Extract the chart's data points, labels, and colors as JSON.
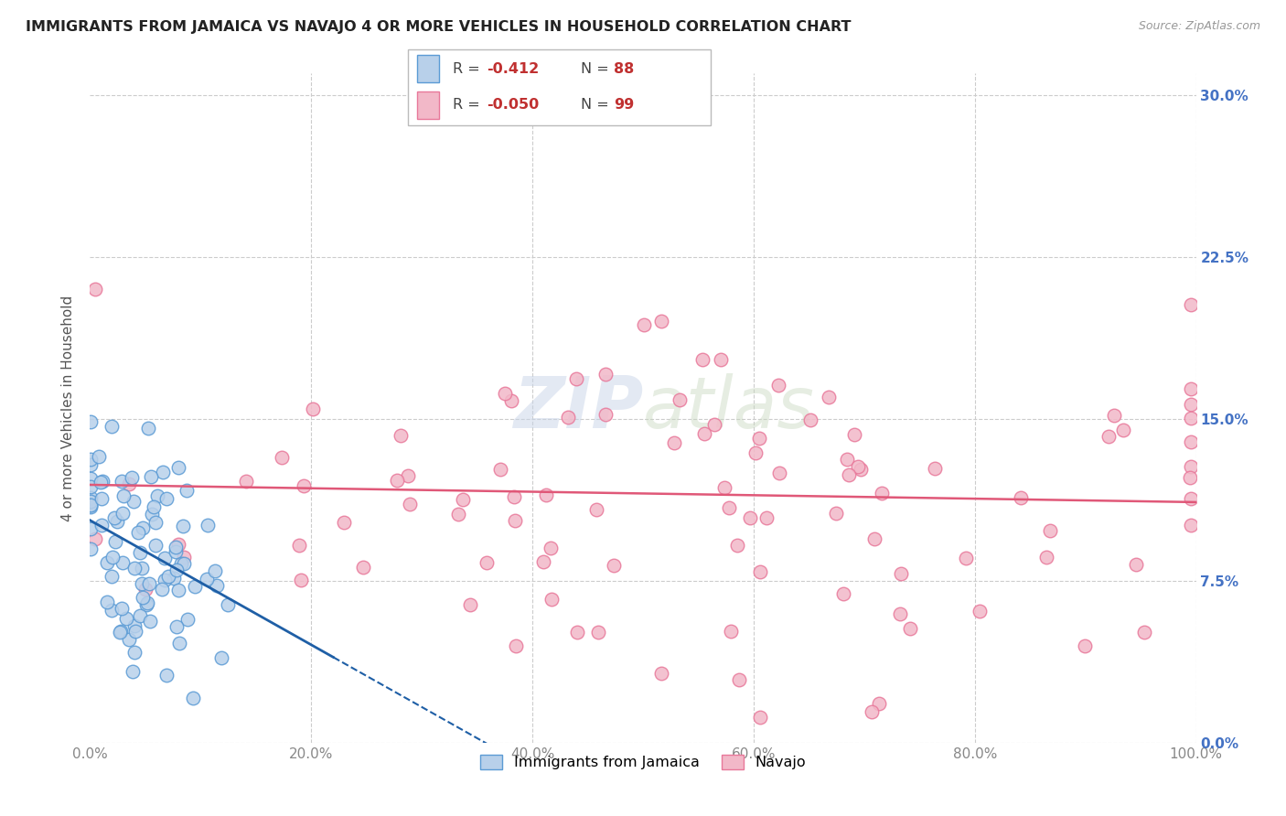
{
  "title": "IMMIGRANTS FROM JAMAICA VS NAVAJO 4 OR MORE VEHICLES IN HOUSEHOLD CORRELATION CHART",
  "source": "Source: ZipAtlas.com",
  "ylabel": "4 or more Vehicles in Household",
  "xlim": [
    0,
    100
  ],
  "ylim": [
    0,
    31
  ],
  "watermark": "ZIPatlas",
  "blue_color": "#5b9bd5",
  "pink_color": "#e8789a",
  "blue_fill": "#b8d0ea",
  "pink_fill": "#f2b8c8",
  "blue_line_color": "#1f5fa6",
  "pink_line_color": "#e05878",
  "grid_color": "#cccccc",
  "bg_color": "#ffffff",
  "title_color": "#222222",
  "right_tick_color": "#4472c4",
  "seed": 7,
  "n_blue": 88,
  "n_pink": 99,
  "R_blue": -0.412,
  "R_pink": -0.05,
  "mean_x_blue": 4.5,
  "std_x_blue": 4.0,
  "mean_y_blue": 9.0,
  "std_y_blue": 2.8,
  "mean_x_pink": 55.0,
  "std_x_pink": 28.0,
  "mean_y_pink": 11.5,
  "std_y_pink": 4.5
}
